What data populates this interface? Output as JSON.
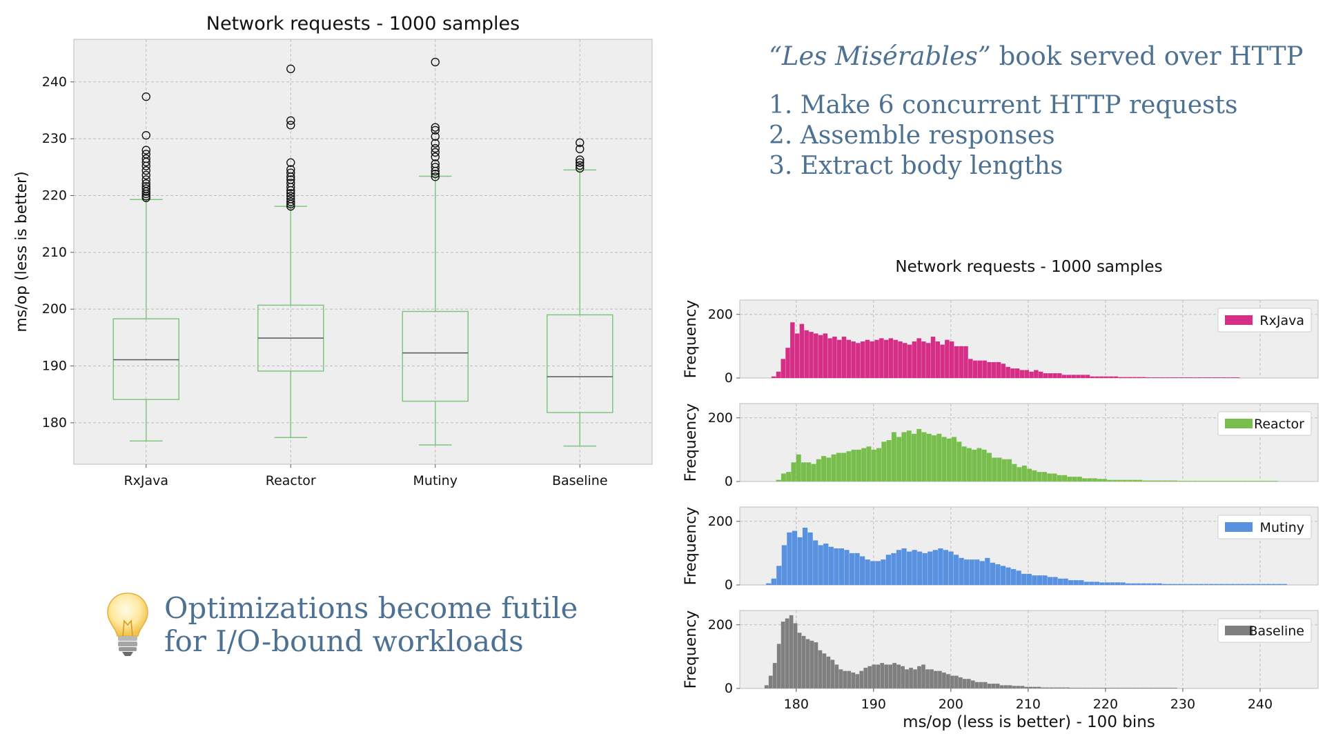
{
  "info": {
    "book": "“Les Misérables”",
    "headline_rest": " book served over HTTP",
    "steps": [
      "1. Make 6 concurrent HTTP requests",
      "2. Assemble responses",
      "3. Extract body lengths"
    ]
  },
  "tip": {
    "icon": "lightbulb-icon",
    "line1": "Optimizations become futile",
    "line2": "for I/O-bound workloads"
  },
  "chart_data": [
    {
      "type": "box",
      "title": "Network requests - 1000 samples",
      "xlabel": "",
      "ylabel": "ms/op (less is better)",
      "ylim": [
        172.7,
        247.5
      ],
      "yticks": [
        180,
        190,
        200,
        210,
        220,
        230,
        240
      ],
      "grid": true,
      "box_color": "#7fc47f",
      "median_color": "#555555",
      "categories": [
        "RxJava",
        "Reactor",
        "Mutiny",
        "Baseline"
      ],
      "stats": [
        {
          "whislo": 176.8,
          "q1": 184.1,
          "med": 191.1,
          "q3": 198.3,
          "whishi": 219.3,
          "fliers": [
            219.6,
            219.9,
            220.3,
            220.7,
            221.2,
            221.6,
            222.1,
            222.8,
            223.6,
            224.4,
            225.2,
            225.9,
            226.5,
            227.3,
            228.0,
            230.6,
            237.4
          ]
        },
        {
          "whislo": 177.4,
          "q1": 189.1,
          "med": 194.9,
          "q3": 200.7,
          "whishi": 218.1,
          "fliers": [
            218.1,
            218.5,
            218.9,
            219.4,
            219.9,
            220.4,
            220.9,
            221.5,
            222.2,
            222.8,
            223.3,
            224.0,
            224.6,
            225.8,
            232.4,
            233.2,
            242.3
          ]
        },
        {
          "whislo": 176.1,
          "q1": 183.8,
          "med": 192.3,
          "q3": 199.6,
          "whishi": 223.4,
          "fliers": [
            223.3,
            223.8,
            224.3,
            225.0,
            225.6,
            226.8,
            227.6,
            228.3,
            229.2,
            230.4,
            231.5,
            232.0,
            243.5
          ]
        },
        {
          "whislo": 175.9,
          "q1": 181.8,
          "med": 188.1,
          "q3": 199.0,
          "whishi": 224.5,
          "fliers": [
            224.8,
            225.3,
            225.8,
            226.3,
            228.2,
            229.3
          ]
        }
      ]
    },
    {
      "type": "histogram",
      "title": "Network requests - 1000 samples",
      "xlabel": "ms/op (less is better) - 100 bins",
      "ylabel": "Frequency",
      "xlim": [
        172.7,
        247.5
      ],
      "xticks": [
        180,
        190,
        200,
        210,
        220,
        230,
        240
      ],
      "ylim": [
        0,
        245
      ],
      "yticks": [
        0,
        200
      ],
      "grid": true,
      "legend_position": "top-right",
      "series": [
        {
          "name": "RxJava",
          "color": "#d62d87",
          "range": [
            176.8,
            237.4
          ],
          "counts": [
            5,
            20,
            60,
            95,
            175,
            140,
            170,
            150,
            145,
            140,
            135,
            140,
            125,
            130,
            120,
            130,
            120,
            115,
            110,
            115,
            120,
            115,
            120,
            125,
            120,
            125,
            120,
            115,
            110,
            105,
            115,
            125,
            115,
            110,
            130,
            115,
            105,
            120,
            115,
            100,
            100,
            100,
            60,
            55,
            55,
            55,
            50,
            50,
            50,
            45,
            35,
            30,
            30,
            25,
            25,
            20,
            25,
            20,
            15,
            15,
            15,
            15,
            10,
            10,
            10,
            10,
            10,
            10,
            5,
            5,
            5,
            5,
            5,
            5,
            3,
            3,
            3,
            3,
            3,
            3,
            2,
            2,
            2,
            2,
            2,
            2,
            2,
            2,
            2,
            2,
            2,
            2,
            2,
            2,
            2,
            2,
            2,
            2,
            2,
            2
          ]
        },
        {
          "name": "Reactor",
          "color": "#78be4c",
          "range": [
            177.4,
            242.3
          ],
          "counts": [
            5,
            25,
            30,
            60,
            85,
            60,
            60,
            55,
            70,
            80,
            75,
            85,
            90,
            90,
            95,
            100,
            100,
            105,
            110,
            100,
            105,
            125,
            130,
            155,
            140,
            155,
            160,
            150,
            165,
            155,
            150,
            145,
            150,
            140,
            135,
            140,
            125,
            110,
            105,
            100,
            105,
            100,
            90,
            75,
            75,
            70,
            70,
            55,
            45,
            50,
            40,
            35,
            30,
            30,
            25,
            25,
            20,
            20,
            15,
            15,
            15,
            10,
            10,
            10,
            8,
            8,
            5,
            5,
            5,
            5,
            5,
            5,
            5,
            3,
            3,
            3,
            3,
            3,
            3,
            3,
            2,
            2,
            2,
            2,
            2,
            2,
            2,
            2,
            2,
            2,
            2,
            2,
            2,
            2,
            2,
            2,
            2,
            2,
            2,
            2
          ]
        },
        {
          "name": "Mutiny",
          "color": "#5991e1",
          "range": [
            176.1,
            243.5
          ],
          "counts": [
            5,
            20,
            60,
            125,
            165,
            170,
            150,
            180,
            165,
            140,
            125,
            130,
            120,
            115,
            115,
            110,
            100,
            100,
            90,
            80,
            75,
            75,
            80,
            95,
            100,
            110,
            115,
            105,
            110,
            105,
            100,
            105,
            110,
            115,
            110,
            105,
            95,
            85,
            80,
            80,
            80,
            75,
            85,
            70,
            65,
            60,
            55,
            50,
            45,
            35,
            35,
            30,
            30,
            30,
            25,
            25,
            20,
            20,
            15,
            15,
            15,
            10,
            10,
            10,
            8,
            8,
            8,
            8,
            8,
            5,
            5,
            5,
            5,
            5,
            5,
            5,
            3,
            3,
            3,
            3,
            3,
            3,
            3,
            3,
            3,
            3,
            3,
            3,
            3,
            3,
            3,
            3,
            3,
            3,
            3,
            3,
            3,
            3,
            3,
            3
          ]
        },
        {
          "name": "Baseline",
          "color": "#7f7f7f",
          "range": [
            175.9,
            229.3
          ],
          "counts": [
            10,
            40,
            80,
            140,
            210,
            220,
            230,
            205,
            175,
            165,
            155,
            150,
            145,
            120,
            110,
            100,
            90,
            75,
            60,
            55,
            55,
            50,
            45,
            55,
            65,
            70,
            75,
            75,
            80,
            75,
            75,
            80,
            75,
            70,
            60,
            65,
            60,
            70,
            75,
            60,
            60,
            55,
            55,
            50,
            45,
            40,
            40,
            35,
            30,
            30,
            25,
            20,
            20,
            20,
            15,
            15,
            15,
            10,
            10,
            10,
            8,
            8,
            8,
            5,
            5,
            5,
            5,
            3,
            3,
            3,
            3,
            3,
            3,
            3,
            2,
            2,
            2,
            2,
            2,
            2,
            2,
            2,
            2,
            2,
            2,
            2,
            2,
            2,
            2,
            2,
            2,
            2,
            2,
            2,
            2,
            2,
            2,
            2,
            2,
            2
          ]
        }
      ]
    }
  ]
}
